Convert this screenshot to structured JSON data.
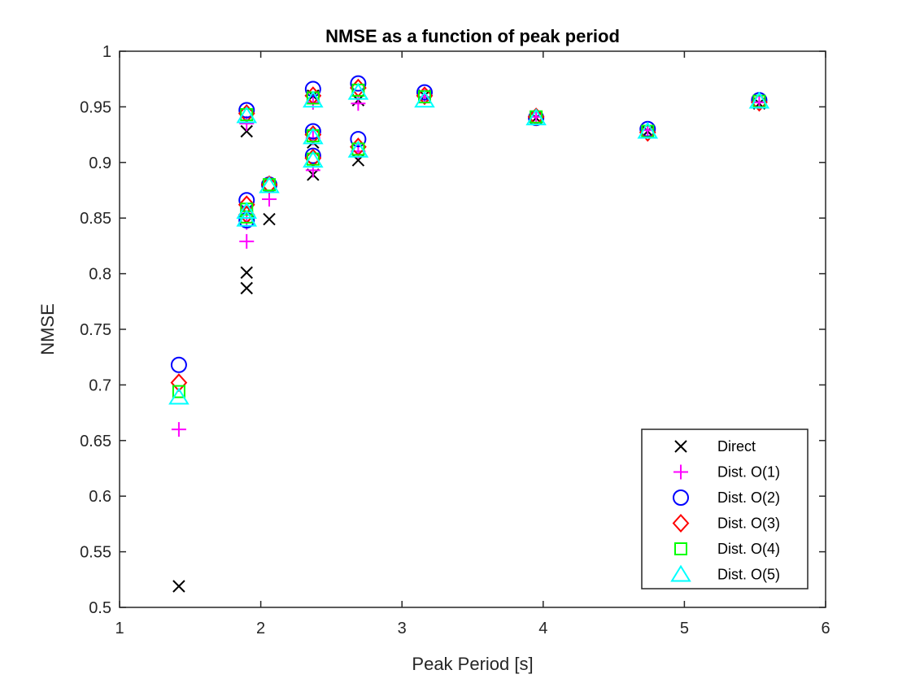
{
  "chart_data": {
    "type": "scatter",
    "title": "NMSE as a function of peak period",
    "xlabel": "Peak Period [s]",
    "ylabel": "NMSE",
    "xlim": [
      1,
      6
    ],
    "ylim": [
      0.5,
      1
    ],
    "xticks": [
      1,
      2,
      3,
      4,
      5,
      6
    ],
    "yticks": [
      0.5,
      0.55,
      0.6,
      0.65,
      0.7,
      0.75,
      0.8,
      0.85,
      0.9,
      0.95,
      1
    ],
    "xtick_labels": [
      "1",
      "2",
      "3",
      "4",
      "5",
      "6"
    ],
    "ytick_labels": [
      "0.5",
      "0.55",
      "0.6",
      "0.65",
      "0.7",
      "0.75",
      "0.8",
      "0.85",
      "0.9",
      "0.95",
      "1"
    ],
    "grid": false,
    "legend_position": "bottom-right",
    "series": [
      {
        "name": "Direct",
        "marker": "x",
        "color": "#000000",
        "points": [
          [
            1.42,
            0.519
          ],
          [
            1.9,
            0.928
          ],
          [
            1.9,
            0.801
          ],
          [
            1.9,
            0.787
          ],
          [
            2.06,
            0.849
          ],
          [
            2.37,
            0.96
          ],
          [
            2.37,
            0.918
          ],
          [
            2.37,
            0.889
          ],
          [
            2.69,
            0.956
          ],
          [
            2.69,
            0.902
          ],
          [
            3.16,
            0.96
          ],
          [
            3.95,
            0.94
          ],
          [
            4.74,
            0.928
          ],
          [
            5.53,
            0.953
          ]
        ]
      },
      {
        "name": "Dist. O(1)",
        "marker": "plus",
        "color": "#ff00ff",
        "points": [
          [
            1.42,
            0.66
          ],
          [
            1.9,
            0.935
          ],
          [
            1.9,
            0.846
          ],
          [
            1.9,
            0.829
          ],
          [
            2.06,
            0.867
          ],
          [
            2.37,
            0.954
          ],
          [
            2.37,
            0.922
          ],
          [
            2.37,
            0.893
          ],
          [
            2.69,
            0.953
          ],
          [
            2.69,
            0.91
          ],
          [
            3.16,
            0.959
          ],
          [
            3.95,
            0.941
          ],
          [
            4.74,
            0.929
          ],
          [
            5.53,
            0.954
          ]
        ]
      },
      {
        "name": "Dist. O(2)",
        "marker": "circle",
        "color": "#0000ff",
        "points": [
          [
            1.42,
            0.718
          ],
          [
            1.9,
            0.947
          ],
          [
            1.9,
            0.866
          ],
          [
            1.9,
            0.848
          ],
          [
            2.06,
            0.88
          ],
          [
            2.37,
            0.966
          ],
          [
            2.37,
            0.928
          ],
          [
            2.37,
            0.906
          ],
          [
            2.69,
            0.971
          ],
          [
            2.69,
            0.921
          ],
          [
            3.16,
            0.963
          ],
          [
            3.95,
            0.94
          ],
          [
            4.74,
            0.93
          ],
          [
            5.53,
            0.956
          ]
        ]
      },
      {
        "name": "Dist. O(3)",
        "marker": "diamond",
        "color": "#ff0000",
        "points": [
          [
            1.42,
            0.702
          ],
          [
            1.9,
            0.944
          ],
          [
            1.9,
            0.862
          ],
          [
            1.9,
            0.853
          ],
          [
            2.06,
            0.88
          ],
          [
            2.37,
            0.96
          ],
          [
            2.37,
            0.925
          ],
          [
            2.37,
            0.904
          ],
          [
            2.69,
            0.967
          ],
          [
            2.69,
            0.914
          ],
          [
            3.16,
            0.96
          ],
          [
            3.95,
            0.941
          ],
          [
            4.74,
            0.927
          ],
          [
            5.53,
            0.954
          ]
        ]
      },
      {
        "name": "Dist. O(4)",
        "marker": "square",
        "color": "#00ff00",
        "points": [
          [
            1.42,
            0.694
          ],
          [
            1.9,
            0.943
          ],
          [
            1.9,
            0.858
          ],
          [
            1.9,
            0.851
          ],
          [
            2.06,
            0.88
          ],
          [
            2.37,
            0.958
          ],
          [
            2.37,
            0.924
          ],
          [
            2.37,
            0.903
          ],
          [
            2.69,
            0.965
          ],
          [
            2.69,
            0.912
          ],
          [
            3.16,
            0.959
          ],
          [
            3.95,
            0.941
          ],
          [
            4.74,
            0.928
          ],
          [
            5.53,
            0.955
          ]
        ]
      },
      {
        "name": "Dist. O(5)",
        "marker": "triangle",
        "color": "#00ffff",
        "points": [
          [
            1.42,
            0.689
          ],
          [
            1.9,
            0.942
          ],
          [
            1.9,
            0.856
          ],
          [
            1.9,
            0.849
          ],
          [
            2.06,
            0.879
          ],
          [
            2.37,
            0.956
          ],
          [
            2.37,
            0.923
          ],
          [
            2.37,
            0.902
          ],
          [
            2.69,
            0.963
          ],
          [
            2.69,
            0.911
          ],
          [
            3.16,
            0.956
          ],
          [
            3.95,
            0.94
          ],
          [
            4.74,
            0.928
          ],
          [
            5.53,
            0.955
          ]
        ]
      }
    ]
  }
}
